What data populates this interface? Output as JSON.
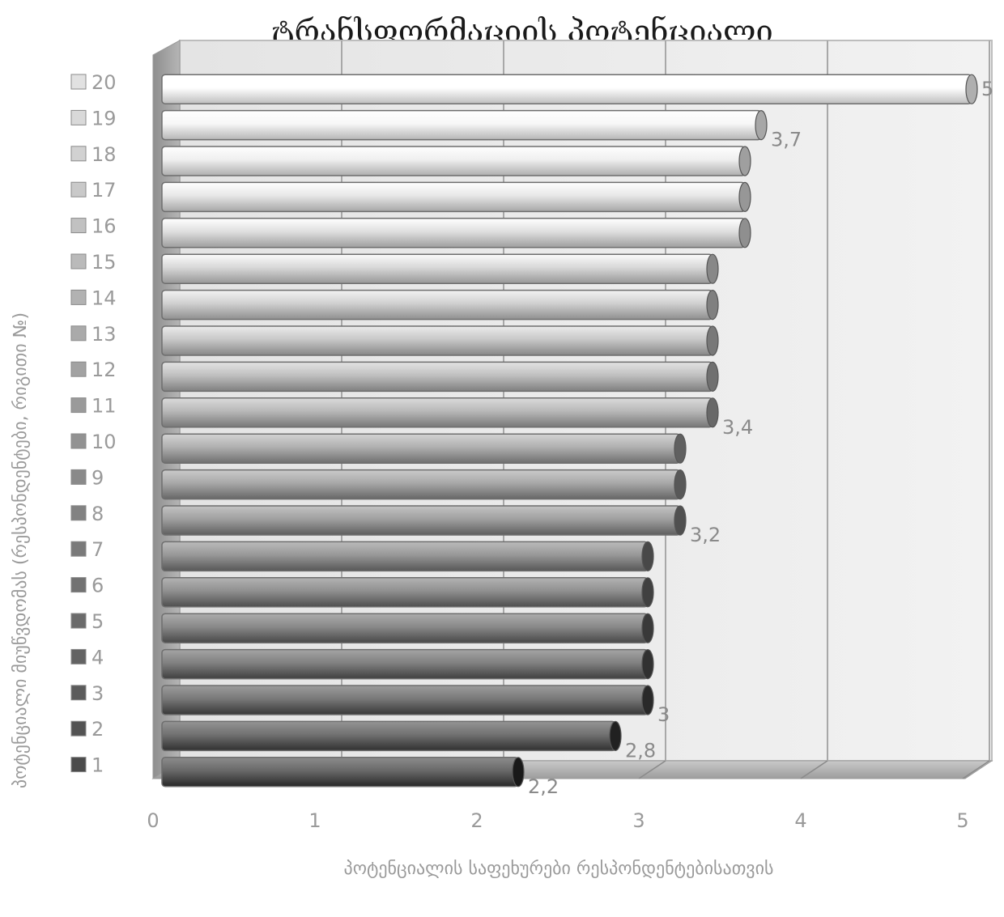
{
  "chart_data": {
    "type": "bar",
    "orientation": "horizontal",
    "title": "ტრანსფორმაციის პოტენციალი",
    "xlabel": "პოტენციალის საფეხურები რესპონდენტებისათვის",
    "ylabel": "პოტენციალი მიუწვდომას (რესპონდენტები, რიგითი №)",
    "categories": [
      "1",
      "2",
      "3",
      "4",
      "5",
      "6",
      "7",
      "8",
      "9",
      "10",
      "11",
      "12",
      "13",
      "14",
      "15",
      "16",
      "17",
      "18",
      "19",
      "20"
    ],
    "values": [
      2.2,
      2.8,
      3,
      3,
      3,
      3,
      3,
      3.2,
      3.2,
      3.2,
      3.4,
      3.4,
      3.4,
      3.4,
      3.4,
      3.6,
      3.6,
      3.6,
      3.7,
      5
    ],
    "data_labels": [
      {
        "index": 0,
        "text": "2,2"
      },
      {
        "index": 1,
        "text": "2,8"
      },
      {
        "index": 2,
        "text": "3"
      },
      {
        "index": 7,
        "text": "3,2"
      },
      {
        "index": 10,
        "text": "3,4"
      },
      {
        "index": 18,
        "text": "3,7"
      },
      {
        "index": 19,
        "text": "5"
      }
    ],
    "x_ticks": [
      "0",
      "1",
      "2",
      "3",
      "4",
      "5"
    ],
    "xlim": [
      0,
      5
    ],
    "grid": true,
    "legend_position": "left",
    "style": "3d-cylinder, grayscale gradient (dark for low index, light for high index)"
  }
}
